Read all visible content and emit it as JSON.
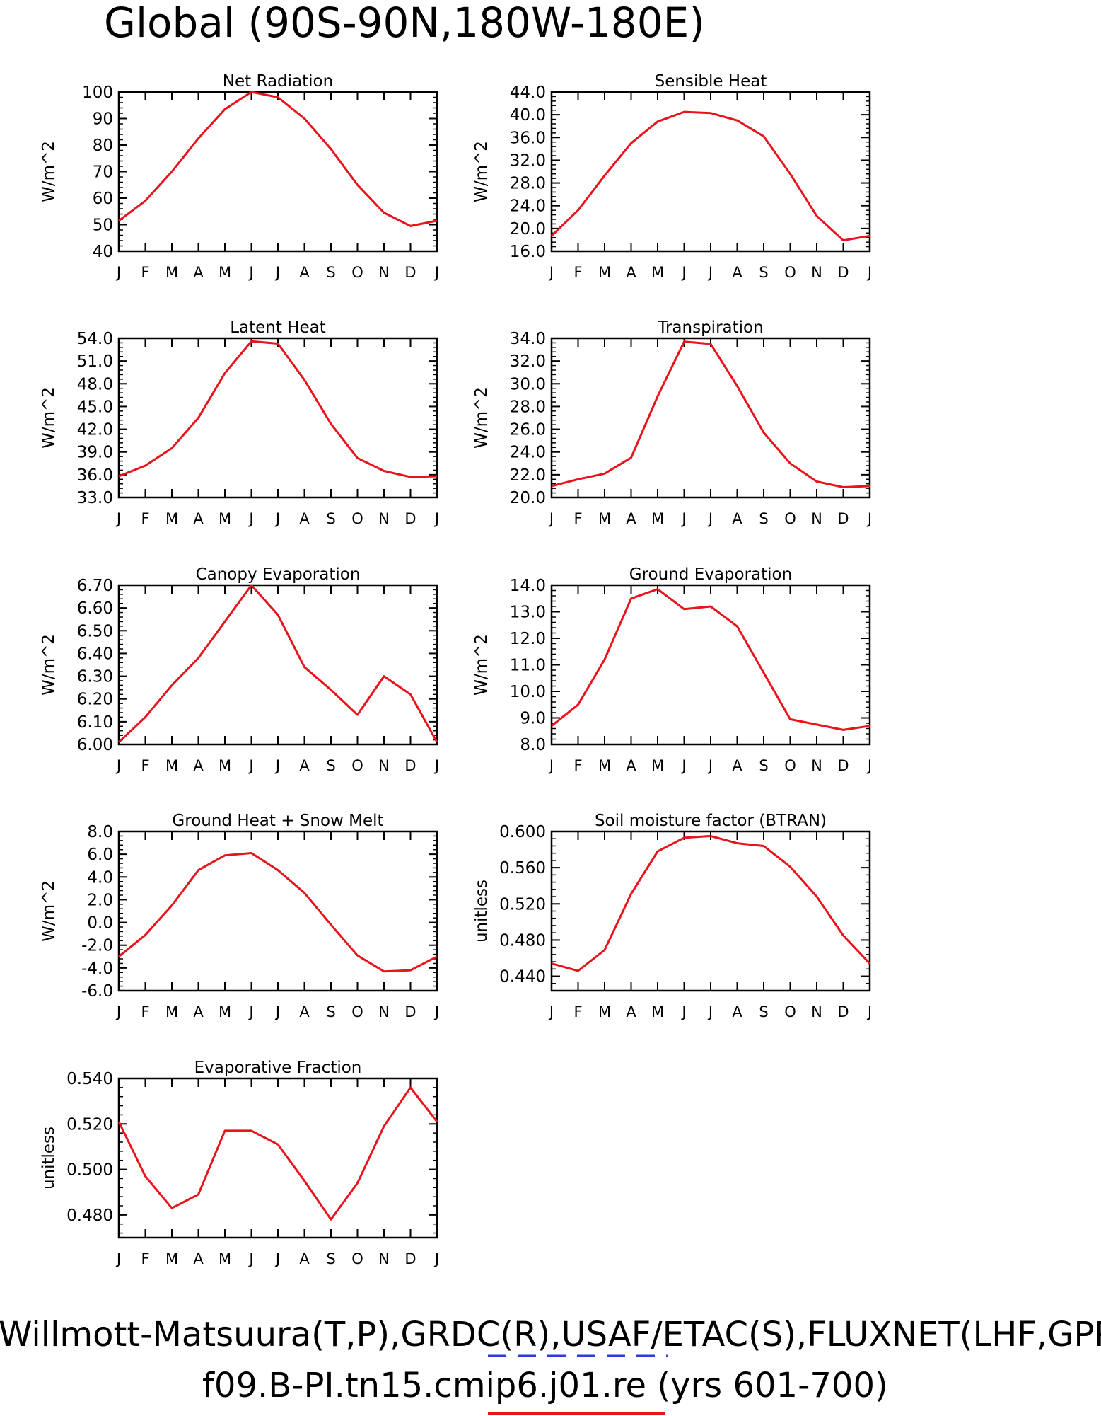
{
  "page_title": "Global (90S-90N,180W-180E)",
  "footer": {
    "line1": "Willmott-Matsuura(T,P),GRDC(R),USAF/ETAC(S),FLUXNET(LHF,GPP)",
    "line2": "f09.B-PI.tn15.cmip6.j01.re (yrs 601-700)",
    "legend_colors": {
      "reference": "#2d3cd8",
      "model": "#e8131b"
    }
  },
  "line_color": "#e8131b",
  "months": [
    "J",
    "F",
    "M",
    "A",
    "M",
    "J",
    "J",
    "A",
    "S",
    "O",
    "N",
    "D",
    "J"
  ],
  "chart_data": [
    {
      "type": "line",
      "title": "Net Radiation",
      "ylabel": "W/m^2",
      "ylim": [
        40,
        100
      ],
      "yticks": [
        "40",
        "50",
        "60",
        "70",
        "80",
        "90",
        "100"
      ],
      "values": [
        51.5,
        59,
        70,
        82.5,
        93.5,
        100,
        98,
        90,
        78.5,
        65,
        54.5,
        49.5,
        51.5
      ]
    },
    {
      "type": "line",
      "title": "Sensible Heat",
      "ylabel": "W/m^2",
      "ylim": [
        16,
        44
      ],
      "yticks": [
        "16.0",
        "20.0",
        "24.0",
        "28.0",
        "32.0",
        "36.0",
        "40.0",
        "44.0"
      ],
      "values": [
        18.7,
        23.2,
        29.3,
        35,
        38.8,
        40.5,
        40.3,
        39,
        36.2,
        29.6,
        22.2,
        17.9,
        18.7
      ]
    },
    {
      "type": "line",
      "title": "Latent Heat",
      "ylabel": "W/m^2",
      "ylim": [
        33,
        54
      ],
      "yticks": [
        "33.0",
        "36.0",
        "39.0",
        "42.0",
        "45.0",
        "48.0",
        "51.0",
        "54.0"
      ],
      "values": [
        35.8,
        37.2,
        39.5,
        43.5,
        49.4,
        53.6,
        53.3,
        48.5,
        42.7,
        38.2,
        36.5,
        35.7,
        35.8
      ]
    },
    {
      "type": "line",
      "title": "Transpiration",
      "ylabel": "W/m^2",
      "ylim": [
        20,
        34
      ],
      "yticks": [
        "20.0",
        "22.0",
        "24.0",
        "26.0",
        "28.0",
        "30.0",
        "32.0",
        "34.0"
      ],
      "values": [
        21,
        21.6,
        22.1,
        23.5,
        28.9,
        33.7,
        33.5,
        29.8,
        25.7,
        23,
        21.4,
        20.9,
        21
      ]
    },
    {
      "type": "line",
      "title": "Canopy Evaporation",
      "ylabel": "W/m^2",
      "ylim": [
        6.0,
        6.7
      ],
      "yticks": [
        "6.00",
        "6.10",
        "6.20",
        "6.30",
        "6.40",
        "6.50",
        "6.60",
        "6.70"
      ],
      "values": [
        6.01,
        6.12,
        6.26,
        6.38,
        6.54,
        6.7,
        6.57,
        6.34,
        6.24,
        6.13,
        6.3,
        6.22,
        6.01
      ]
    },
    {
      "type": "line",
      "title": "Ground Evaporation",
      "ylabel": "W/m^2",
      "ylim": [
        8,
        14
      ],
      "yticks": [
        "8.0",
        "9.0",
        "10.0",
        "11.0",
        "12.0",
        "13.0",
        "14.0"
      ],
      "values": [
        8.7,
        9.5,
        11.2,
        13.5,
        13.85,
        13.1,
        13.2,
        12.45,
        10.7,
        8.95,
        8.75,
        8.55,
        8.7
      ]
    },
    {
      "type": "line",
      "title": "Ground Heat + Snow Melt",
      "ylabel": "W/m^2",
      "ylim": [
        -6,
        8
      ],
      "yticks": [
        "-6.0",
        "-4.0",
        "-2.0",
        "0.0",
        "2.0",
        "4.0",
        "6.0",
        "8.0"
      ],
      "values": [
        -3.0,
        -1.1,
        1.5,
        4.6,
        5.9,
        6.1,
        4.6,
        2.6,
        -0.2,
        -2.9,
        -4.3,
        -4.2,
        -3.0
      ]
    },
    {
      "type": "line",
      "title": "Soil moisture factor (BTRAN)",
      "ylabel": "unitless",
      "ylim": [
        0.424,
        0.6
      ],
      "yticks": [
        "0.440",
        "0.480",
        "0.520",
        "0.560",
        "0.600"
      ],
      "values": [
        0.454,
        0.446,
        0.469,
        0.531,
        0.578,
        0.593,
        0.595,
        0.587,
        0.584,
        0.561,
        0.528,
        0.485,
        0.454
      ]
    },
    {
      "type": "line",
      "title": "Evaporative Fraction",
      "ylabel": "unitless",
      "ylim": [
        0.47,
        0.54
      ],
      "yticks": [
        "0.480",
        "0.500",
        "0.520",
        "0.540"
      ],
      "values": [
        0.521,
        0.497,
        0.483,
        0.489,
        0.517,
        0.517,
        0.511,
        0.495,
        0.478,
        0.494,
        0.519,
        0.536,
        0.521
      ]
    }
  ]
}
